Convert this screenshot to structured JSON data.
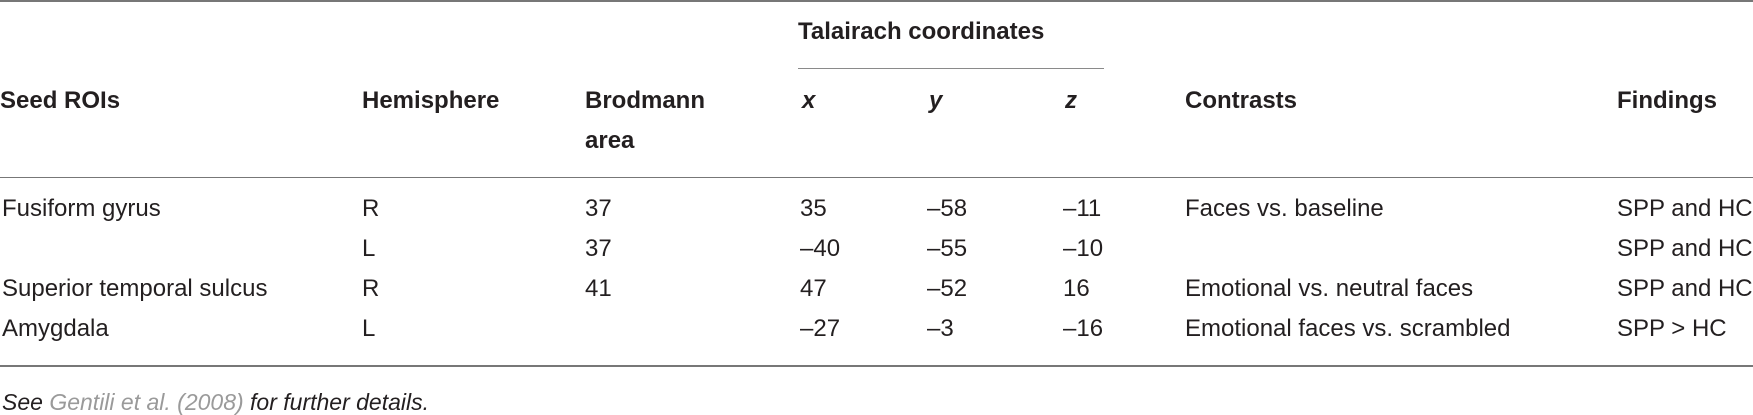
{
  "table": {
    "group_header": "Talairach coordinates",
    "headers": {
      "seed": "Seed ROIs",
      "hemisphere": "Hemisphere",
      "brodmann_line1": "Brodmann",
      "brodmann_line2": "area",
      "x": "x",
      "y": "y",
      "z": "z",
      "contrasts": "Contrasts",
      "findings": "Findings"
    },
    "rows": [
      {
        "seed": "Fusiform gyrus",
        "hemisphere": "R",
        "ba": "37",
        "x": "35",
        "y": "–58",
        "z": "–11",
        "contrast": "Faces vs. baseline",
        "finding": "SPP and HC"
      },
      {
        "seed": "",
        "hemisphere": "L",
        "ba": "37",
        "x": "–40",
        "y": "–55",
        "z": "–10",
        "contrast": "",
        "finding": "SPP and HC"
      },
      {
        "seed": "Superior temporal sulcus",
        "hemisphere": "R",
        "ba": "41",
        "x": "47",
        "y": "–52",
        "z": "16",
        "contrast": "Emotional vs. neutral faces",
        "finding": "SPP and HC"
      },
      {
        "seed": "Amygdala",
        "hemisphere": "L",
        "ba": "",
        "x": "–27",
        "y": "–3",
        "z": "–16",
        "contrast": "Emotional faces vs. scrambled",
        "finding": "SPP > HC"
      }
    ]
  },
  "footnote": {
    "prefix": "See ",
    "link_text": "Gentili et al. (2008)",
    "suffix": " for further details."
  }
}
